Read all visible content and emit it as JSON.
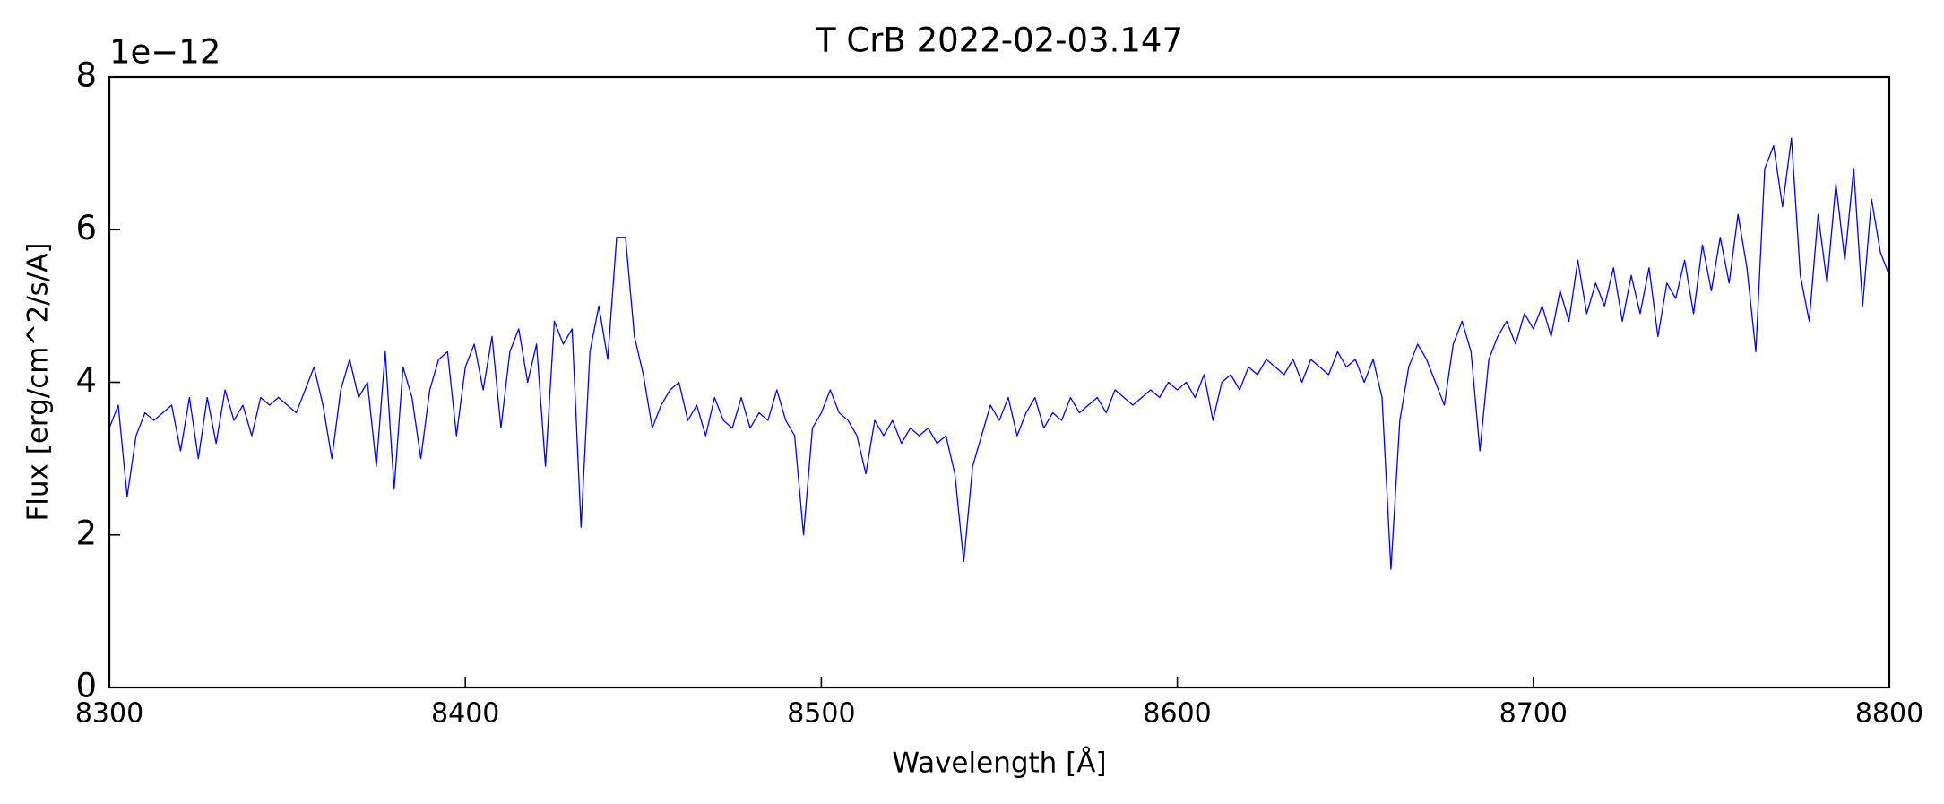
{
  "chart_data": {
    "type": "line",
    "title": "T CrB  2022-02-03.147",
    "x_label": "Wavelength [Å]",
    "y_label": "Flux [erg/cm^2/s/A]",
    "y_offset_label": "1e−12",
    "xlim": [
      8300,
      8800
    ],
    "xticks": [
      8300,
      8400,
      8500,
      8600,
      8700,
      8800
    ],
    "ylim": [
      0,
      8
    ],
    "yticks": [
      0,
      2,
      4,
      6,
      8
    ],
    "grid": false,
    "x": [
      8300,
      8302.5,
      8305,
      8307.5,
      8310,
      8312.5,
      8315,
      8317.5,
      8320,
      8322.5,
      8325,
      8327.5,
      8330,
      8332.5,
      8335,
      8337.5,
      8340,
      8342.5,
      8345,
      8347.5,
      8350,
      8352.5,
      8355,
      8357.5,
      8360,
      8362.5,
      8365,
      8367.5,
      8370,
      8372.5,
      8375,
      8377.5,
      8380,
      8382.5,
      8385,
      8387.5,
      8390,
      8392.5,
      8395,
      8397.5,
      8400,
      8402.5,
      8405,
      8407.5,
      8410,
      8412.5,
      8415,
      8417.5,
      8420,
      8422.5,
      8425,
      8427.5,
      8430,
      8432.5,
      8435,
      8437.5,
      8440,
      8442.5,
      8445,
      8447.5,
      8450,
      8452.5,
      8455,
      8457.5,
      8460,
      8462.5,
      8465,
      8467.5,
      8470,
      8472.5,
      8475,
      8477.5,
      8480,
      8482.5,
      8485,
      8487.5,
      8490,
      8492.5,
      8495,
      8497.5,
      8500,
      8502.5,
      8505,
      8507.5,
      8510,
      8512.5,
      8515,
      8517.5,
      8520,
      8522.5,
      8525,
      8527.5,
      8530,
      8532.5,
      8535,
      8537.5,
      8540,
      8542.5,
      8545,
      8547.5,
      8550,
      8552.5,
      8555,
      8557.5,
      8560,
      8562.5,
      8565,
      8567.5,
      8570,
      8572.5,
      8575,
      8577.5,
      8580,
      8582.5,
      8585,
      8587.5,
      8590,
      8592.5,
      8595,
      8597.5,
      8600,
      8602.5,
      8605,
      8607.5,
      8610,
      8612.5,
      8615,
      8617.5,
      8620,
      8622.5,
      8625,
      8627.5,
      8630,
      8632.5,
      8635,
      8637.5,
      8640,
      8642.5,
      8645,
      8647.5,
      8650,
      8652.5,
      8655,
      8657.5,
      8660,
      8662.5,
      8665,
      8667.5,
      8670,
      8672.5,
      8675,
      8677.5,
      8680,
      8682.5,
      8685,
      8687.5,
      8690,
      8692.5,
      8695,
      8697.5,
      8700,
      8702.5,
      8705,
      8707.5,
      8710,
      8712.5,
      8715,
      8717.5,
      8720,
      8722.5,
      8725,
      8727.5,
      8730,
      8732.5,
      8735,
      8737.5,
      8740,
      8742.5,
      8745,
      8747.5,
      8750,
      8752.5,
      8755,
      8757.5,
      8760,
      8762.5,
      8765,
      8767.5,
      8770,
      8772.5,
      8775,
      8777.5,
      8780,
      8782.5,
      8785,
      8787.5,
      8790,
      8792.5,
      8795,
      8797.5,
      8800
    ],
    "series": [
      {
        "color": "#0000ff",
        "values": [
          3.4,
          3.7,
          2.5,
          3.3,
          3.6,
          3.5,
          3.6,
          3.7,
          3.1,
          3.8,
          3.0,
          3.8,
          3.2,
          3.9,
          3.5,
          3.7,
          3.3,
          3.8,
          3.7,
          3.8,
          3.7,
          3.6,
          3.9,
          4.2,
          3.7,
          3.0,
          3.9,
          4.3,
          3.8,
          4.0,
          2.9,
          4.4,
          2.6,
          4.2,
          3.8,
          3.0,
          3.9,
          4.3,
          4.4,
          3.3,
          4.2,
          4.5,
          3.9,
          4.6,
          3.4,
          4.4,
          4.7,
          4.0,
          4.5,
          2.9,
          4.8,
          4.5,
          4.7,
          2.1,
          4.4,
          5.0,
          4.3,
          5.9,
          5.9,
          4.6,
          4.1,
          3.4,
          3.7,
          3.9,
          4.0,
          3.5,
          3.7,
          3.3,
          3.8,
          3.5,
          3.4,
          3.8,
          3.4,
          3.6,
          3.5,
          3.9,
          3.5,
          3.3,
          2.0,
          3.4,
          3.6,
          3.9,
          3.6,
          3.5,
          3.3,
          2.8,
          3.5,
          3.3,
          3.5,
          3.2,
          3.4,
          3.3,
          3.4,
          3.2,
          3.3,
          2.8,
          1.65,
          2.9,
          3.3,
          3.7,
          3.5,
          3.8,
          3.3,
          3.6,
          3.8,
          3.4,
          3.6,
          3.5,
          3.8,
          3.6,
          3.7,
          3.8,
          3.6,
          3.9,
          3.8,
          3.7,
          3.8,
          3.9,
          3.8,
          4.0,
          3.9,
          4.0,
          3.8,
          4.1,
          3.5,
          4.0,
          4.1,
          3.9,
          4.2,
          4.1,
          4.3,
          4.2,
          4.1,
          4.3,
          4.0,
          4.3,
          4.2,
          4.1,
          4.4,
          4.2,
          4.3,
          4.0,
          4.3,
          3.8,
          1.55,
          3.5,
          4.2,
          4.5,
          4.3,
          4.0,
          3.7,
          4.5,
          4.8,
          4.4,
          3.1,
          4.3,
          4.6,
          4.8,
          4.5,
          4.9,
          4.7,
          5.0,
          4.6,
          5.2,
          4.8,
          5.6,
          4.9,
          5.3,
          5.0,
          5.5,
          4.8,
          5.4,
          4.9,
          5.5,
          4.6,
          5.3,
          5.1,
          5.6,
          4.9,
          5.8,
          5.2,
          5.9,
          5.3,
          6.2,
          5.5,
          4.4,
          6.8,
          7.1,
          6.3,
          7.2,
          5.4,
          4.8,
          6.2,
          5.3,
          6.6,
          5.6,
          6.8,
          5.0,
          6.4,
          5.7,
          5.4
        ]
      }
    ]
  }
}
